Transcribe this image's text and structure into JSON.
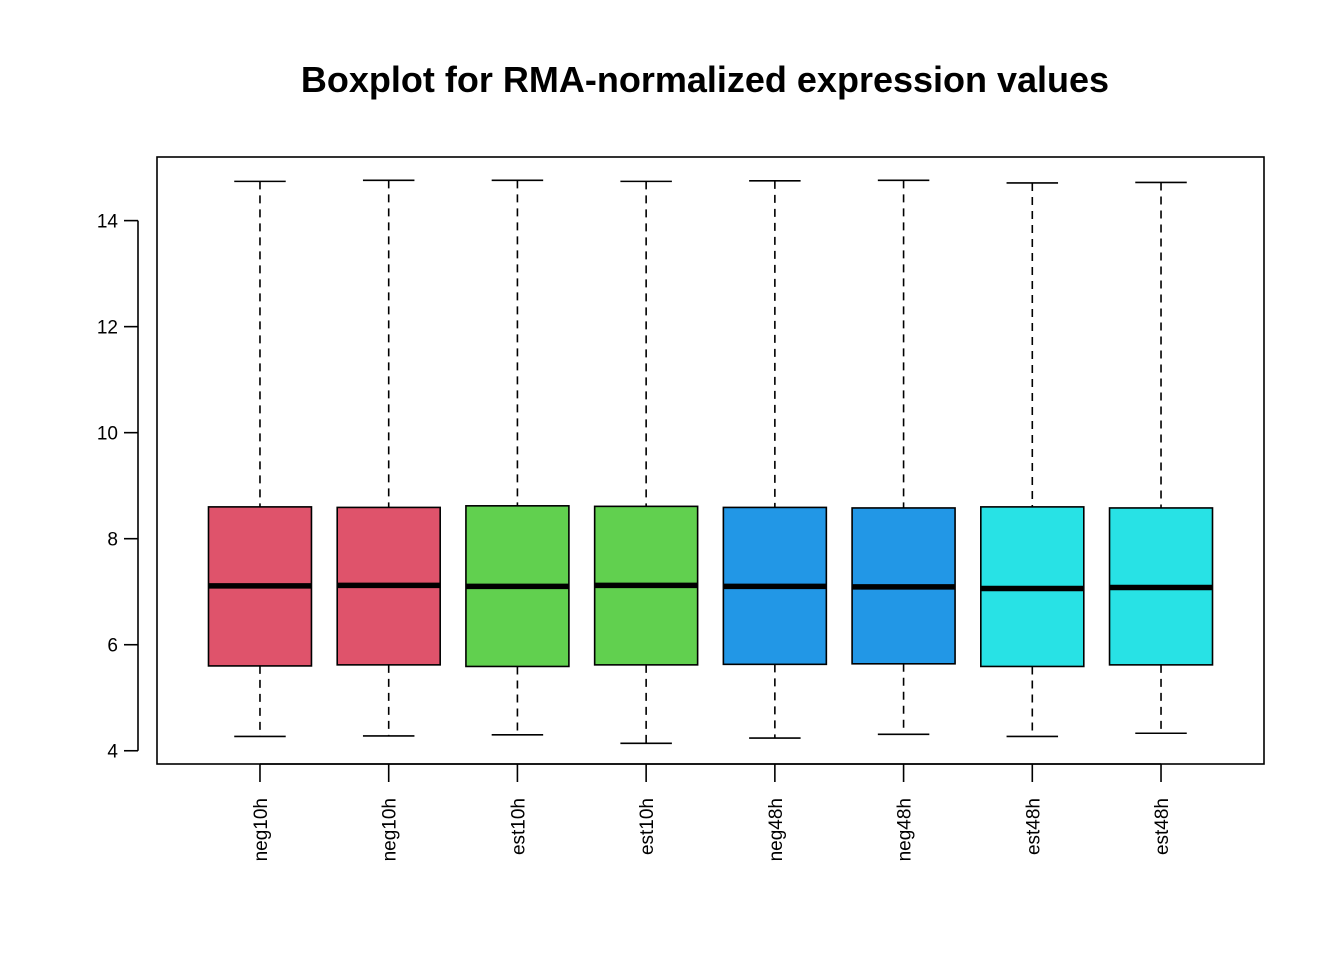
{
  "chart_data": {
    "type": "boxplot",
    "title": "Boxplot for RMA-normalized expression values",
    "xlabel": "",
    "ylabel": "",
    "ylim": [
      3.75,
      15.2
    ],
    "yticks": [
      4,
      6,
      8,
      10,
      12,
      14
    ],
    "ytick_labels": [
      "4",
      "6",
      "8",
      "10",
      "12",
      "14"
    ],
    "grid": false,
    "legend": "none",
    "categories": [
      "neg10h",
      "neg10h",
      "est10h",
      "est10h",
      "neg48h",
      "neg48h",
      "est48h",
      "est48h"
    ],
    "colors": [
      "#DF536B",
      "#DF536B",
      "#61D04F",
      "#61D04F",
      "#2297E6",
      "#2297E6",
      "#28E2E5",
      "#28E2E5"
    ],
    "boxes": [
      {
        "min": 4.27,
        "q1": 5.6,
        "median": 7.11,
        "q3": 8.6,
        "max": 14.74
      },
      {
        "min": 4.28,
        "q1": 5.62,
        "median": 7.12,
        "q3": 8.59,
        "max": 14.76
      },
      {
        "min": 4.3,
        "q1": 5.59,
        "median": 7.1,
        "q3": 8.62,
        "max": 14.76
      },
      {
        "min": 4.14,
        "q1": 5.62,
        "median": 7.12,
        "q3": 8.61,
        "max": 14.74
      },
      {
        "min": 4.24,
        "q1": 5.63,
        "median": 7.1,
        "q3": 8.59,
        "max": 14.75
      },
      {
        "min": 4.31,
        "q1": 5.64,
        "median": 7.09,
        "q3": 8.58,
        "max": 14.76
      },
      {
        "min": 4.27,
        "q1": 5.59,
        "median": 7.06,
        "q3": 8.6,
        "max": 14.71
      },
      {
        "min": 4.33,
        "q1": 5.62,
        "median": 7.08,
        "q3": 8.58,
        "max": 14.72
      }
    ]
  }
}
